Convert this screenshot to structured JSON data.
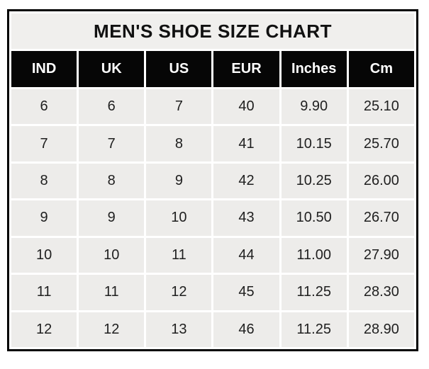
{
  "chart_data": {
    "type": "table",
    "title": "MEN'S SHOE SIZE CHART",
    "columns": [
      "IND",
      "UK",
      "US",
      "EUR",
      "Inches",
      "Cm"
    ],
    "rows": [
      [
        "6",
        "6",
        "7",
        "40",
        "9.90",
        "25.10"
      ],
      [
        "7",
        "7",
        "8",
        "41",
        "10.15",
        "25.70"
      ],
      [
        "8",
        "8",
        "9",
        "42",
        "10.25",
        "26.00"
      ],
      [
        "9",
        "9",
        "10",
        "43",
        "10.50",
        "26.70"
      ],
      [
        "10",
        "10",
        "11",
        "44",
        "11.00",
        "27.90"
      ],
      [
        "11",
        "11",
        "12",
        "45",
        "11.25",
        "28.30"
      ],
      [
        "12",
        "12",
        "13",
        "46",
        "11.25",
        "28.90"
      ]
    ]
  },
  "colors": {
    "page_background": "#ffffff",
    "outer_border": "#000000",
    "title_background": "#f0efed",
    "header_background": "#060606",
    "header_text": "#ffffff",
    "cell_background": "#edecea",
    "body_text": "#1f1f1f",
    "cell_gap": "#ffffff"
  }
}
